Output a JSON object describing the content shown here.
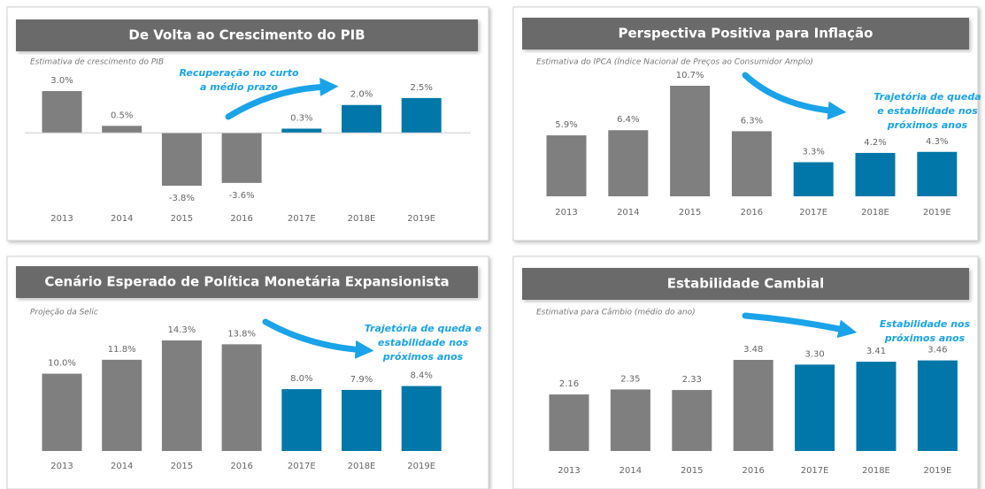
{
  "chart_data": [
    {
      "type": "bar",
      "title": "De Volta ao Crescimento do PIB",
      "subtitle": "Estimativa de crescimento do PIB",
      "annotation": [
        "Recuperação no curto",
        "a médio prazo"
      ],
      "categories": [
        "2013",
        "2014",
        "2015",
        "2016",
        "2017E",
        "2018E",
        "2019E"
      ],
      "values": [
        3.0,
        0.5,
        -3.8,
        -3.6,
        0.3,
        2.0,
        2.5
      ],
      "value_labels": [
        "3.0%",
        "0.5%",
        "-3.8%",
        "-3.6%",
        "0.3%",
        "2.0%",
        "2.5%"
      ],
      "colors": [
        "#7f7f7f",
        "#7f7f7f",
        "#7f7f7f",
        "#7f7f7f",
        "#0077a8",
        "#0077a8",
        "#0077a8"
      ]
    },
    {
      "type": "bar",
      "title": "Perspectiva Positiva para Inflação",
      "subtitle": "Estimativa do IPCA (Índice Nacional de Preços ao Consumidor Amplo)",
      "annotation": [
        "Trajetória de queda",
        "e estabilidade nos",
        "próximos anos"
      ],
      "categories": [
        "2013",
        "2014",
        "2015",
        "2016",
        "2017E",
        "2018E",
        "2019E"
      ],
      "values": [
        5.9,
        6.4,
        10.7,
        6.3,
        3.3,
        4.2,
        4.3
      ],
      "value_labels": [
        "5.9%",
        "6.4%",
        "10.7%",
        "6.3%",
        "3.3%",
        "4.2%",
        "4.3%"
      ],
      "colors": [
        "#7f7f7f",
        "#7f7f7f",
        "#7f7f7f",
        "#7f7f7f",
        "#0077a8",
        "#0077a8",
        "#0077a8"
      ]
    },
    {
      "type": "bar",
      "title": "Cenário Esperado de Política Monetária Expansionista",
      "subtitle": "Projeção da Selic",
      "annotation": [
        "Trajetória de queda e",
        "estabilidade nos",
        "próximos anos"
      ],
      "categories": [
        "2013",
        "2014",
        "2015",
        "2016",
        "2017E",
        "2018E",
        "2019E"
      ],
      "values": [
        10.0,
        11.8,
        14.3,
        13.8,
        8.0,
        7.9,
        8.4
      ],
      "value_labels": [
        "10.0%",
        "11.8%",
        "14.3%",
        "13.8%",
        "8.0%",
        "7.9%",
        "8.4%"
      ],
      "colors": [
        "#7f7f7f",
        "#7f7f7f",
        "#7f7f7f",
        "#7f7f7f",
        "#0077a8",
        "#0077a8",
        "#0077a8"
      ]
    },
    {
      "type": "bar",
      "title": "Estabilidade Cambial",
      "subtitle": "Estimativa para Câmbio (médio do ano)",
      "annotation": [
        "Estabilidade nos",
        "próximos anos"
      ],
      "categories": [
        "2013",
        "2014",
        "2015",
        "2016",
        "2017E",
        "2018E",
        "2019E"
      ],
      "values": [
        2.16,
        2.35,
        2.33,
        3.48,
        3.3,
        3.41,
        3.46
      ],
      "value_labels": [
        "2.16",
        "2.35",
        "2.33",
        "3.48",
        "3.30",
        "3.41",
        "3.46"
      ],
      "colors": [
        "#7f7f7f",
        "#7f7f7f",
        "#7f7f7f",
        "#7f7f7f",
        "#0077a8",
        "#0077a8",
        "#0077a8"
      ]
    }
  ]
}
